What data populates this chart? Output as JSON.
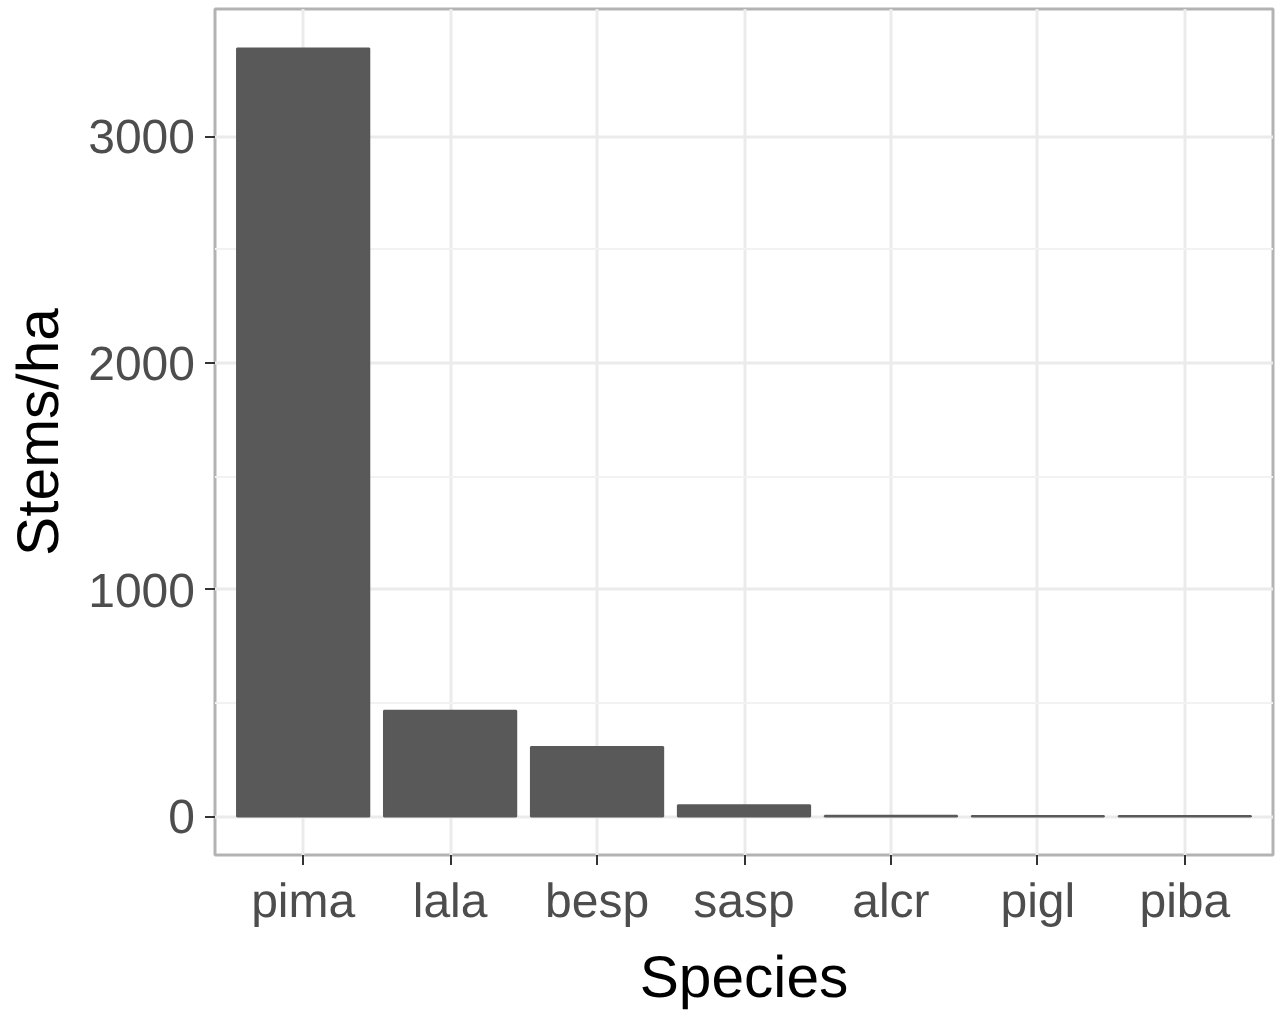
{
  "chart_data": {
    "type": "bar",
    "xlabel": "Species",
    "ylabel": "Stems/ha",
    "categories": [
      "pima",
      "lala",
      "besp",
      "sasp",
      "alcr",
      "pigl",
      "piba"
    ],
    "values": [
      3386,
      466,
      306,
      49,
      3,
      2,
      2
    ],
    "color": "#595959",
    "ylim": [
      -170,
      3560
    ],
    "yticks": [
      0,
      1000,
      2000,
      3000
    ],
    "grid": true
  }
}
